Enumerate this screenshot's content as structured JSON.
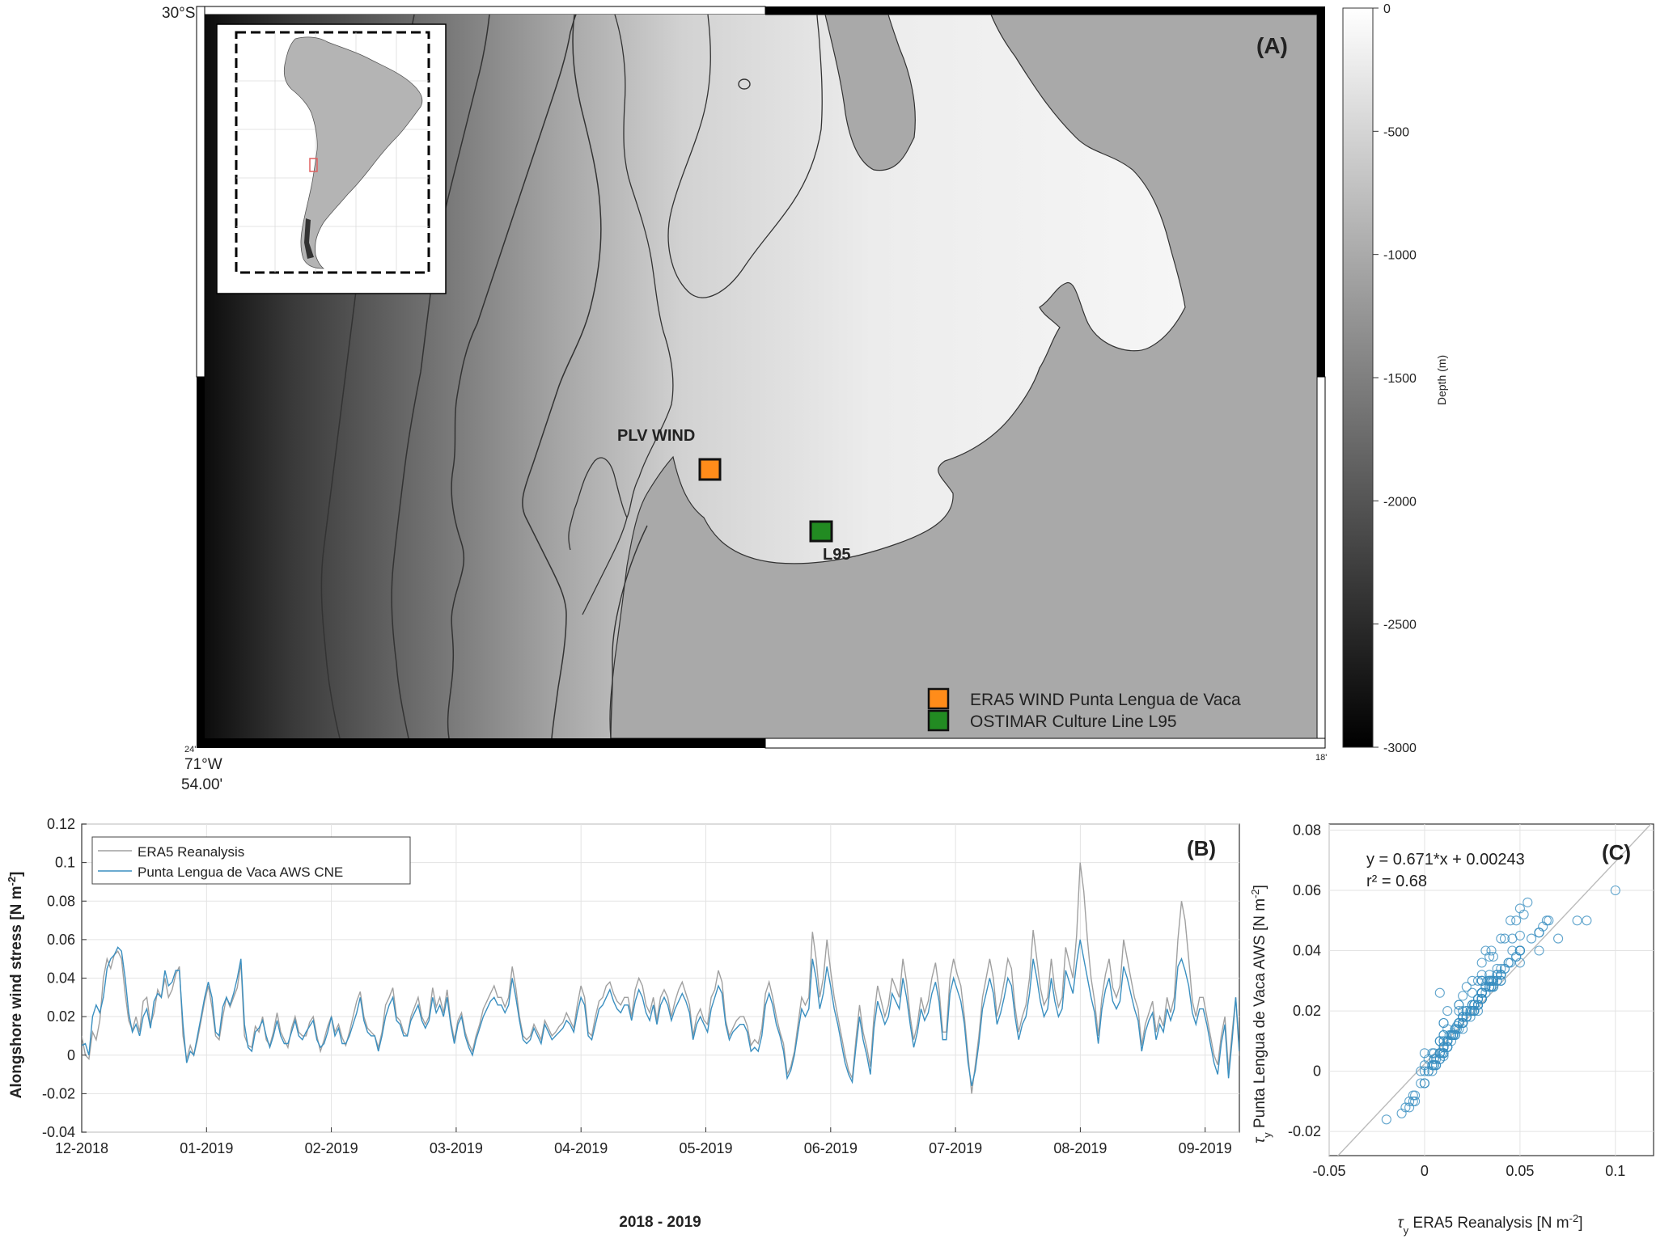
{
  "panel_a": {
    "label": "(A)",
    "lat_top": "30°S",
    "lon_label": "71°W",
    "lon_minutes": "54.00'",
    "corner_bl": "24'",
    "corner_br": "18'",
    "site_wind_label": "PLV WIND",
    "site_line_label": "L95",
    "legend": [
      {
        "label": "ERA5 WIND Punta Lengua de Vaca",
        "color": "#ff8c1a"
      },
      {
        "label": "OSTIMAR Culture Line L95",
        "color": "#228b22"
      }
    ],
    "colorbar": {
      "title": "Depth (m)",
      "ticks": [
        "0",
        "-500",
        "-1000",
        "-1500",
        "-2000",
        "-2500",
        "-3000"
      ]
    },
    "colors": {
      "land": "#a9a9a9",
      "inset_land": "#b4b4b4",
      "inset_box": "#e06060"
    }
  },
  "chart_data": [
    {
      "type": "line",
      "panel": "(B)",
      "xlabel": "2018 - 2019",
      "ylabel": "Alongshore wind stress [N m^-2]",
      "x_ticks": [
        "12-2018",
        "01-2019",
        "02-2019",
        "03-2019",
        "04-2019",
        "05-2019",
        "06-2019",
        "07-2019",
        "08-2019",
        "09-2019"
      ],
      "ylim": [
        -0.04,
        0.12
      ],
      "y_ticks": [
        "-0.04",
        "-0.02",
        "0",
        "0.02",
        "0.04",
        "0.06",
        "0.08",
        "0.1",
        "0.12"
      ],
      "grid": true,
      "legend_position": "top-left",
      "series": [
        {
          "name": "ERA5 Reanalysis",
          "color": "#a0a0a0",
          "values": [
            0.01,
            0.0,
            -0.002,
            0.012,
            0.008,
            0.018,
            0.04,
            0.05,
            0.045,
            0.052,
            0.054,
            0.05,
            0.032,
            0.018,
            0.013,
            0.02,
            0.012,
            0.028,
            0.03,
            0.016,
            0.022,
            0.034,
            0.03,
            0.04,
            0.03,
            0.034,
            0.042,
            0.046,
            0.01,
            -0.002,
            0.005,
            0.0,
            0.008,
            0.018,
            0.028,
            0.036,
            0.025,
            0.01,
            0.008,
            0.02,
            0.03,
            0.025,
            0.03,
            0.035,
            0.048,
            0.01,
            0.005,
            0.004,
            0.015,
            0.012,
            0.02,
            0.008,
            0.005,
            0.012,
            0.022,
            0.012,
            0.008,
            0.004,
            0.014,
            0.02,
            0.012,
            0.01,
            0.01,
            0.017,
            0.02,
            0.01,
            0.002,
            0.008,
            0.015,
            0.02,
            0.012,
            0.016,
            0.009,
            0.005,
            0.012,
            0.02,
            0.028,
            0.033,
            0.02,
            0.014,
            0.012,
            0.01,
            0.004,
            0.012,
            0.026,
            0.03,
            0.035,
            0.02,
            0.018,
            0.012,
            0.01,
            0.02,
            0.025,
            0.03,
            0.02,
            0.016,
            0.02,
            0.035,
            0.025,
            0.03,
            0.022,
            0.034,
            0.018,
            0.008,
            0.018,
            0.022,
            0.012,
            0.006,
            0.002,
            0.01,
            0.016,
            0.024,
            0.028,
            0.032,
            0.036,
            0.03,
            0.03,
            0.025,
            0.03,
            0.046,
            0.035,
            0.02,
            0.01,
            0.008,
            0.01,
            0.016,
            0.012,
            0.008,
            0.018,
            0.014,
            0.01,
            0.012,
            0.015,
            0.017,
            0.022,
            0.018,
            0.014,
            0.026,
            0.036,
            0.03,
            0.012,
            0.01,
            0.02,
            0.028,
            0.03,
            0.036,
            0.038,
            0.032,
            0.028,
            0.026,
            0.03,
            0.03,
            0.02,
            0.034,
            0.04,
            0.036,
            0.026,
            0.022,
            0.03,
            0.018,
            0.03,
            0.034,
            0.03,
            0.02,
            0.028,
            0.034,
            0.038,
            0.032,
            0.026,
            0.01,
            0.02,
            0.024,
            0.018,
            0.016,
            0.03,
            0.034,
            0.044,
            0.038,
            0.018,
            0.01,
            0.014,
            0.018,
            0.02,
            0.02,
            0.015,
            0.005,
            0.008,
            0.006,
            0.014,
            0.032,
            0.038,
            0.03,
            0.02,
            0.012,
            0.006,
            -0.01,
            -0.006,
            0.002,
            0.016,
            0.03,
            0.026,
            0.03,
            0.064,
            0.05,
            0.03,
            0.04,
            0.06,
            0.044,
            0.03,
            0.02,
            0.01,
            0.0,
            -0.008,
            -0.012,
            0.008,
            0.026,
            0.012,
            0.004,
            -0.006,
            0.02,
            0.036,
            0.028,
            0.02,
            0.026,
            0.04,
            0.035,
            0.03,
            0.05,
            0.038,
            0.02,
            0.008,
            0.016,
            0.03,
            0.022,
            0.028,
            0.04,
            0.048,
            0.034,
            0.012,
            0.012,
            0.04,
            0.05,
            0.042,
            0.036,
            0.02,
            0.0,
            -0.02,
            -0.005,
            0.01,
            0.03,
            0.04,
            0.05,
            0.04,
            0.02,
            0.028,
            0.038,
            0.05,
            0.045,
            0.025,
            0.012,
            0.02,
            0.026,
            0.04,
            0.065,
            0.05,
            0.035,
            0.026,
            0.03,
            0.05,
            0.034,
            0.025,
            0.03,
            0.056,
            0.048,
            0.04,
            0.062,
            0.1,
            0.085,
            0.06,
            0.04,
            0.028,
            0.01,
            0.03,
            0.042,
            0.05,
            0.035,
            0.03,
            0.036,
            0.06,
            0.05,
            0.04,
            0.03,
            0.024,
            0.005,
            0.016,
            0.022,
            0.028,
            0.012,
            0.02,
            0.015,
            0.03,
            0.022,
            0.03,
            0.06,
            0.08,
            0.07,
            0.05,
            0.028,
            0.02,
            0.03,
            0.03,
            0.02,
            0.01,
            0.0,
            -0.005,
            0.01,
            0.02,
            -0.008,
            0.012,
            0.03,
            0.0
          ]
        },
        {
          "name": "Punta Lengua de Vaca AWS CNE",
          "color": "#3a8fc0",
          "values": [
            0.005,
            0.006,
            0.0,
            0.02,
            0.026,
            0.022,
            0.03,
            0.045,
            0.05,
            0.052,
            0.056,
            0.054,
            0.04,
            0.022,
            0.012,
            0.016,
            0.01,
            0.02,
            0.024,
            0.014,
            0.028,
            0.032,
            0.03,
            0.044,
            0.036,
            0.038,
            0.044,
            0.044,
            0.016,
            -0.004,
            0.002,
            0.0,
            0.01,
            0.02,
            0.03,
            0.038,
            0.03,
            0.012,
            0.01,
            0.025,
            0.03,
            0.026,
            0.032,
            0.04,
            0.05,
            0.016,
            0.004,
            0.002,
            0.012,
            0.014,
            0.018,
            0.01,
            0.004,
            0.01,
            0.018,
            0.01,
            0.006,
            0.006,
            0.012,
            0.018,
            0.01,
            0.008,
            0.012,
            0.015,
            0.018,
            0.008,
            0.004,
            0.006,
            0.012,
            0.02,
            0.01,
            0.014,
            0.006,
            0.006,
            0.01,
            0.016,
            0.022,
            0.03,
            0.018,
            0.012,
            0.01,
            0.01,
            0.002,
            0.01,
            0.02,
            0.026,
            0.03,
            0.018,
            0.016,
            0.01,
            0.01,
            0.018,
            0.022,
            0.026,
            0.018,
            0.014,
            0.018,
            0.03,
            0.022,
            0.026,
            0.02,
            0.03,
            0.016,
            0.006,
            0.016,
            0.02,
            0.01,
            0.004,
            0.0,
            0.008,
            0.014,
            0.02,
            0.024,
            0.028,
            0.03,
            0.026,
            0.026,
            0.022,
            0.026,
            0.04,
            0.03,
            0.018,
            0.008,
            0.006,
            0.008,
            0.014,
            0.01,
            0.006,
            0.016,
            0.012,
            0.008,
            0.01,
            0.012,
            0.014,
            0.018,
            0.016,
            0.012,
            0.022,
            0.03,
            0.026,
            0.01,
            0.008,
            0.016,
            0.024,
            0.026,
            0.03,
            0.034,
            0.028,
            0.024,
            0.022,
            0.026,
            0.026,
            0.018,
            0.028,
            0.034,
            0.03,
            0.022,
            0.018,
            0.026,
            0.016,
            0.026,
            0.03,
            0.026,
            0.018,
            0.024,
            0.028,
            0.032,
            0.028,
            0.022,
            0.008,
            0.016,
            0.02,
            0.016,
            0.012,
            0.024,
            0.03,
            0.036,
            0.032,
            0.016,
            0.008,
            0.012,
            0.014,
            0.016,
            0.016,
            0.012,
            0.002,
            0.004,
            0.002,
            0.01,
            0.026,
            0.032,
            0.026,
            0.016,
            0.01,
            0.002,
            -0.012,
            -0.008,
            0.0,
            0.012,
            0.024,
            0.02,
            0.024,
            0.05,
            0.04,
            0.024,
            0.032,
            0.046,
            0.036,
            0.024,
            0.016,
            0.006,
            -0.004,
            -0.01,
            -0.014,
            0.004,
            0.02,
            0.008,
            0.0,
            -0.01,
            0.014,
            0.028,
            0.022,
            0.016,
            0.02,
            0.032,
            0.028,
            0.024,
            0.04,
            0.03,
            0.016,
            0.004,
            0.012,
            0.024,
            0.018,
            0.022,
            0.032,
            0.038,
            0.028,
            0.008,
            0.008,
            0.032,
            0.04,
            0.034,
            0.028,
            0.016,
            -0.004,
            -0.016,
            -0.008,
            0.006,
            0.024,
            0.032,
            0.04,
            0.032,
            0.016,
            0.022,
            0.03,
            0.04,
            0.036,
            0.02,
            0.008,
            0.016,
            0.02,
            0.032,
            0.05,
            0.04,
            0.028,
            0.02,
            0.024,
            0.04,
            0.028,
            0.02,
            0.024,
            0.044,
            0.038,
            0.032,
            0.048,
            0.06,
            0.05,
            0.04,
            0.03,
            0.022,
            0.006,
            0.024,
            0.034,
            0.04,
            0.028,
            0.024,
            0.028,
            0.046,
            0.04,
            0.032,
            0.024,
            0.018,
            0.002,
            0.012,
            0.018,
            0.022,
            0.008,
            0.016,
            0.012,
            0.024,
            0.018,
            0.024,
            0.046,
            0.05,
            0.044,
            0.036,
            0.022,
            0.016,
            0.024,
            0.024,
            0.016,
            0.006,
            -0.004,
            -0.01,
            0.006,
            0.016,
            -0.012,
            0.008,
            0.03,
            0.002
          ]
        }
      ]
    },
    {
      "type": "scatter",
      "panel": "(C)",
      "xlabel": "τy ERA5 Reanalysis [N m^-2]",
      "ylabel": "τy Punta Lengua de Vaca AWS [N m^-2]",
      "xlim": [
        -0.05,
        0.12
      ],
      "ylim": [
        -0.028,
        0.082
      ],
      "x_ticks": [
        "-0.05",
        "0",
        "0.05",
        "0.1"
      ],
      "y_ticks": [
        "-0.02",
        "0",
        "0.02",
        "0.04",
        "0.06",
        "0.08"
      ],
      "equation": "y = 0.671*x + 0.00243",
      "r2": "r² = 0.68",
      "fit": {
        "slope": 0.671,
        "intercept": 0.00243
      },
      "marker_color": "#3a8fc0",
      "grid": true
    }
  ]
}
